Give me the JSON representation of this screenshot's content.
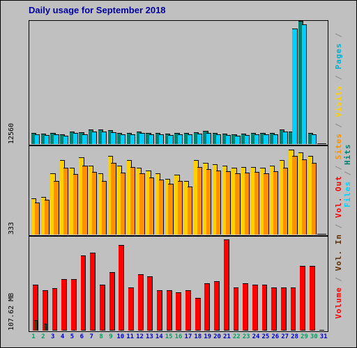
{
  "title": "Daily usage for September 2018",
  "days": [
    1,
    2,
    3,
    4,
    5,
    6,
    7,
    8,
    9,
    10,
    11,
    12,
    13,
    14,
    15,
    16,
    17,
    18,
    19,
    20,
    21,
    22,
    23,
    24,
    25,
    26,
    27,
    28,
    29,
    30,
    31
  ],
  "weekend_days": [
    1,
    2,
    8,
    9,
    15,
    16,
    22,
    23,
    29,
    30
  ],
  "colors": {
    "bg": "#c0c0c0",
    "hits": "#008070",
    "files": "#00d0ff",
    "pages": "#00b0d0",
    "visits": "#ffd000",
    "sites": "#ff9000",
    "vol_out": "#ff0000",
    "vol_in": "#603000",
    "volume": "#ff0000",
    "weekend": "#00a060",
    "weekday": "#0000d0",
    "title": "#0000a0"
  },
  "panels": {
    "top": {
      "ylabel": "12560",
      "ymax": 12560,
      "series": {
        "hits": [
          1080,
          980,
          1100,
          950,
          1200,
          1150,
          1450,
          1400,
          1350,
          1100,
          1050,
          1200,
          1100,
          1080,
          1000,
          1050,
          1100,
          1150,
          1250,
          1100,
          1000,
          950,
          980,
          1050,
          1080,
          1100,
          1400,
          1200,
          12560,
          1100,
          0
        ],
        "files": [
          920,
          850,
          950,
          820,
          1050,
          920,
          1200,
          1180,
          1150,
          950,
          900,
          1050,
          950,
          920,
          850,
          900,
          950,
          1000,
          1100,
          950,
          850,
          820,
          850,
          900,
          930,
          950,
          1200,
          11800,
          12200,
          950,
          0
        ]
      }
    },
    "mid": {
      "ylabel": "333",
      "ymax": 333,
      "series": {
        "visits": [
          135,
          140,
          230,
          280,
          250,
          290,
          260,
          230,
          295,
          260,
          280,
          250,
          240,
          230,
          210,
          225,
          200,
          280,
          270,
          265,
          260,
          250,
          255,
          255,
          250,
          260,
          280,
          320,
          310,
          295,
          0
        ],
        "sites": [
          120,
          130,
          200,
          250,
          228,
          260,
          235,
          200,
          270,
          232,
          255,
          230,
          215,
          205,
          190,
          200,
          180,
          255,
          245,
          240,
          238,
          230,
          232,
          235,
          230,
          238,
          252,
          295,
          282,
          270,
          0
        ]
      }
    },
    "bot": {
      "ylabel": "107.62 MB",
      "ymax": 175,
      "series": {
        "volume": [
          85,
          75,
          78,
          95,
          95,
          140,
          145,
          85,
          108,
          160,
          80,
          105,
          100,
          75,
          75,
          70,
          75,
          60,
          88,
          92,
          170,
          80,
          87,
          85,
          85,
          80,
          80,
          80,
          120,
          120,
          0
        ],
        "vol_in": [
          18,
          12,
          0,
          0,
          0,
          0,
          0,
          0,
          0,
          0,
          0,
          0,
          0,
          0,
          0,
          0,
          0,
          0,
          0,
          0,
          0,
          0,
          0,
          0,
          0,
          0,
          0,
          0,
          0,
          0,
          0
        ]
      }
    }
  },
  "legend": [
    {
      "label": "Volume",
      "color": "#ff0000"
    },
    {
      "label": "Vol. In",
      "color": "#603000"
    },
    {
      "label": "Vol. Out",
      "color": "#ff0000"
    },
    {
      "label": "Sites",
      "color": "#ff9000"
    },
    {
      "label": "Visits",
      "color": "#ffd000"
    },
    {
      "label": "Pages",
      "color": "#00b0d0"
    },
    {
      "label": "Files",
      "color": "#00d0ff"
    },
    {
      "label": "Hits",
      "color": "#008070"
    }
  ]
}
